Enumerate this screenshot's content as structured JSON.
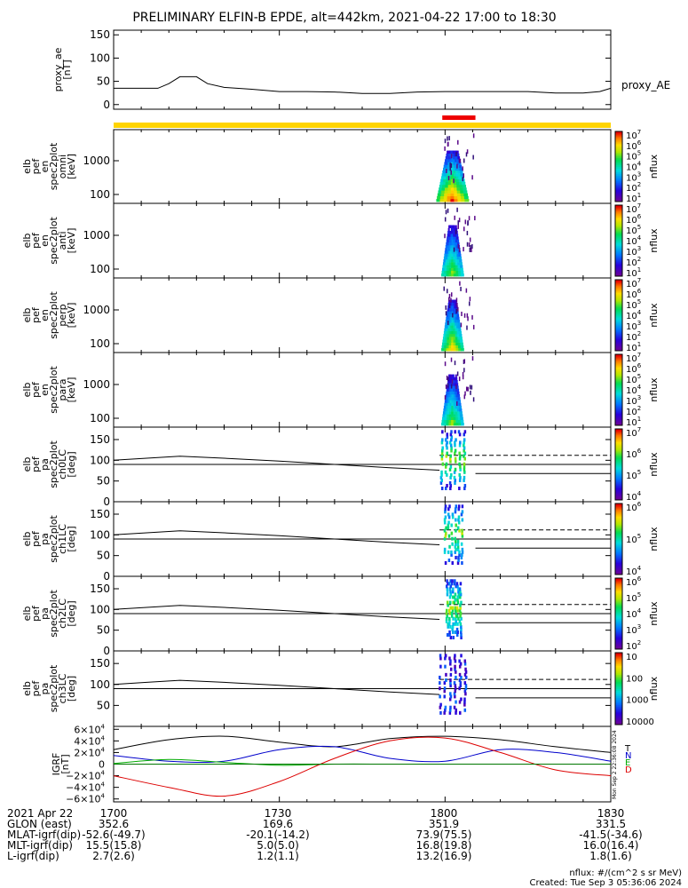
{
  "title": "PRELIMINARY ELFIN-B EPDE, alt=442km, 2021-04-22 17:00 to 18:30",
  "colors": {
    "status_bar": "#ffd400",
    "science_bar": "#ee0000",
    "field_T": "#000000",
    "field_N": "#0000cc",
    "field_E": "#00aa00",
    "field_D": "#dd0000"
  },
  "chart_data": [
    {
      "type": "line",
      "panel": "proxy_ae",
      "ylabel": [
        "proxy_ae",
        "[nT]"
      ],
      "yticks": [
        0,
        50,
        100,
        150
      ],
      "ylim": [
        -10,
        160
      ],
      "legend": "proxy_AE",
      "x_minutes": [
        0,
        5,
        8,
        10,
        12,
        15,
        17,
        20,
        25,
        30,
        35,
        40,
        45,
        50,
        55,
        60,
        65,
        70,
        75,
        80,
        85,
        88,
        90
      ],
      "values": [
        35,
        35,
        35,
        45,
        60,
        60,
        45,
        37,
        33,
        28,
        28,
        27,
        24,
        24,
        27,
        28,
        28,
        28,
        28,
        25,
        25,
        28,
        35
      ]
    },
    {
      "type": "heatmap",
      "panel": "omni",
      "ylabel": [
        "elb",
        "pef",
        "en",
        "spec2plot",
        "omni",
        "[keV]"
      ],
      "yticks": [
        "100",
        "1000"
      ],
      "zlabel": "nflux",
      "colorbar": [
        "10",
        "10",
        "10",
        "10",
        "10",
        "10",
        "10"
      ],
      "colorbar_exp": [
        "1",
        "2",
        "3",
        "4",
        "5",
        "6",
        "7"
      ]
    },
    {
      "type": "heatmap",
      "panel": "anti",
      "ylabel": [
        "elb",
        "pef",
        "en",
        "spec2plot",
        "anti",
        "[keV]"
      ],
      "yticks": [
        "100",
        "1000"
      ],
      "zlabel": "nflux",
      "colorbar": [
        "10",
        "10",
        "10",
        "10",
        "10",
        "10",
        "10"
      ],
      "colorbar_exp": [
        "1",
        "2",
        "3",
        "4",
        "5",
        "6",
        "7"
      ]
    },
    {
      "type": "heatmap",
      "panel": "perp",
      "ylabel": [
        "elb",
        "pef",
        "en",
        "spec2plot",
        "perp",
        "[keV]"
      ],
      "yticks": [
        "100",
        "1000"
      ],
      "zlabel": "nflux",
      "colorbar": [
        "10",
        "10",
        "10",
        "10",
        "10",
        "10",
        "10"
      ],
      "colorbar_exp": [
        "1",
        "2",
        "3",
        "4",
        "5",
        "6",
        "7"
      ]
    },
    {
      "type": "heatmap",
      "panel": "para",
      "ylabel": [
        "elb",
        "pef",
        "en",
        "spec2plot",
        "para",
        "[keV]"
      ],
      "yticks": [
        "100",
        "1000"
      ],
      "zlabel": "nflux",
      "colorbar": [
        "10",
        "10",
        "10",
        "10",
        "10",
        "10",
        "10"
      ],
      "colorbar_exp": [
        "1",
        "2",
        "3",
        "4",
        "5",
        "6",
        "7"
      ]
    },
    {
      "type": "heatmap",
      "panel": "ch0LC",
      "ylabel": [
        "elb",
        "pef",
        "pa",
        "spec2plot",
        "ch0LC",
        "[deg]"
      ],
      "yticks": [
        "0",
        "50",
        "100",
        "150"
      ],
      "ylim": [
        0,
        180
      ],
      "zlabel": "nflux",
      "colorbar": [
        "10",
        "10",
        "10",
        "10"
      ],
      "colorbar_exp": [
        "4",
        "5",
        "6",
        "7"
      ]
    },
    {
      "type": "heatmap",
      "panel": "ch1LC",
      "ylabel": [
        "elb",
        "pef",
        "pa",
        "spec2plot",
        "ch1LC",
        "[deg]"
      ],
      "yticks": [
        "0",
        "50",
        "100",
        "150"
      ],
      "ylim": [
        0,
        180
      ],
      "zlabel": "nflux",
      "colorbar": [
        "10",
        "10",
        "10"
      ],
      "colorbar_exp": [
        "4",
        "5",
        "6"
      ]
    },
    {
      "type": "heatmap",
      "panel": "ch2LC",
      "ylabel": [
        "elb",
        "pef",
        "pa",
        "spec2plot",
        "ch2LC",
        "[deg]"
      ],
      "yticks": [
        "0",
        "50",
        "100",
        "150"
      ],
      "ylim": [
        0,
        180
      ],
      "zlabel": "nflux",
      "colorbar": [
        "10",
        "10",
        "10",
        "10",
        "10"
      ],
      "colorbar_exp": [
        "2",
        "3",
        "4",
        "5",
        "6"
      ]
    },
    {
      "type": "heatmap",
      "panel": "ch3LC",
      "ylabel": [
        "elb",
        "pef",
        "pa",
        "spec2plot",
        "ch3LC",
        "[deg]"
      ],
      "yticks": [
        "50",
        "100",
        "150"
      ],
      "ylim": [
        0,
        180
      ],
      "zlabel": "nflux",
      "colorbar": [
        "10000",
        "1000",
        "100",
        "10"
      ]
    },
    {
      "type": "line",
      "panel": "IGRF",
      "ylabel": [
        "IGRF",
        "[nT]"
      ],
      "yticks": [
        "−6×10",
        "−4×10",
        "−2×10",
        "0",
        "2×10",
        "4×10",
        "6×10"
      ],
      "ytick_exp": "4",
      "ylim": [
        -65000,
        65000
      ],
      "legend": [
        "T",
        "N",
        "E",
        "D"
      ],
      "side_text": "Mon Sep  2 22:36:08 2024",
      "x_minutes": [
        0,
        10,
        20,
        30,
        40,
        50,
        60,
        70,
        80,
        90
      ],
      "series": [
        {
          "name": "T",
          "values": [
            25000,
            42000,
            48000,
            38000,
            30000,
            44000,
            48000,
            42000,
            30000,
            20000
          ]
        },
        {
          "name": "N",
          "values": [
            15000,
            5000,
            5000,
            25000,
            30000,
            10000,
            5000,
            25000,
            20000,
            5000
          ]
        },
        {
          "name": "E",
          "values": [
            1000,
            8000,
            3000,
            -2000,
            0,
            0,
            0,
            0,
            0,
            0
          ]
        },
        {
          "name": "D",
          "values": [
            -20000,
            -40000,
            -55000,
            -30000,
            10000,
            40000,
            45000,
            20000,
            -10000,
            -20000
          ]
        }
      ]
    }
  ],
  "xaxis": {
    "tick_labels": [
      "1700",
      "1730",
      "1800",
      "1830"
    ],
    "tick_minutes": [
      0,
      30,
      60,
      90
    ]
  },
  "footer": {
    "rows": [
      {
        "label": "2021 Apr 22",
        "values": [
          "1700",
          "1730",
          "1800",
          "1830"
        ]
      },
      {
        "label": "GLON (east)",
        "values": [
          "352.6",
          "169.6",
          "351.9",
          "331.5"
        ]
      },
      {
        "label": "MLAT-igrf(dip)",
        "values": [
          "-52.6(-49.7)",
          "-20.1(-14.2)",
          "73.9(75.5)",
          "-41.5(-34.6)"
        ]
      },
      {
        "label": "MLT-igrf(dip)",
        "values": [
          "15.5(15.8)",
          "5.0(5.0)",
          "16.8(19.8)",
          "16.0(16.4)"
        ]
      },
      {
        "label": "L-igrf(dip)",
        "values": [
          "2.7(2.6)",
          "1.2(1.1)",
          "13.2(16.9)",
          "1.8(1.6)"
        ]
      }
    ],
    "units_note": "nflux: #/(cm^2 s sr MeV)",
    "created": "Created: Tue Sep  3 05:36:06 2024"
  }
}
